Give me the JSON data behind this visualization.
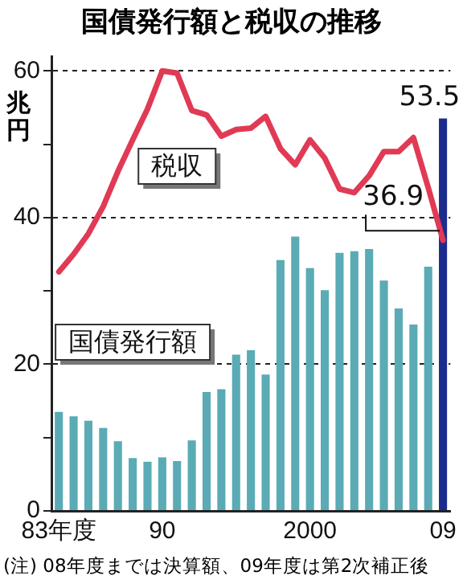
{
  "chart_data": {
    "type": "bar",
    "title": "国債発行額と税収の推移",
    "ylabel": "兆円",
    "categories": [
      "83年度",
      null,
      null,
      null,
      null,
      null,
      null,
      "90",
      null,
      null,
      null,
      null,
      null,
      null,
      null,
      null,
      null,
      "2000",
      null,
      null,
      null,
      null,
      null,
      null,
      null,
      null,
      "09"
    ],
    "series": [
      {
        "name": "国債発行額",
        "color": "#5aabb5",
        "colors": [
          null,
          null,
          null,
          null,
          null,
          null,
          null,
          null,
          null,
          null,
          null,
          null,
          null,
          null,
          null,
          null,
          null,
          null,
          null,
          null,
          null,
          null,
          null,
          null,
          null,
          null,
          "#1c2c8c"
        ],
        "values": [
          13.5,
          12.9,
          12.3,
          11.3,
          9.5,
          7.2,
          6.7,
          7.3,
          6.8,
          9.6,
          16.2,
          16.6,
          21.3,
          21.9,
          18.6,
          34.2,
          37.4,
          33.1,
          30.1,
          35.2,
          35.4,
          35.7,
          31.4,
          27.6,
          25.4,
          33.3,
          53.5
        ],
        "value_labels": [
          null,
          null,
          null,
          null,
          null,
          null,
          null,
          null,
          null,
          null,
          null,
          null,
          null,
          null,
          null,
          null,
          null,
          null,
          null,
          null,
          null,
          null,
          null,
          null,
          null,
          null,
          "53.5"
        ]
      },
      {
        "name": "税収",
        "type": "line",
        "color": "#e03a55",
        "values": [
          32.6,
          35.0,
          37.8,
          41.5,
          46.3,
          50.6,
          54.8,
          60.0,
          59.7,
          54.6,
          54.0,
          51.1,
          52.0,
          52.2,
          53.8,
          49.4,
          47.2,
          50.6,
          48.1,
          43.9,
          43.4,
          45.7,
          49.0,
          49.0,
          50.9,
          44.1,
          36.9
        ],
        "value_labels": [
          null,
          null,
          null,
          null,
          null,
          null,
          null,
          null,
          null,
          null,
          null,
          null,
          null,
          null,
          null,
          null,
          null,
          null,
          null,
          null,
          null,
          null,
          null,
          null,
          null,
          null,
          "36.9"
        ]
      }
    ],
    "ylim": [
      0,
      62
    ],
    "yticks": [
      0,
      {
        "value": 10,
        "label": null
      },
      20,
      {
        "value": 30,
        "label": null
      },
      40,
      {
        "value": 50,
        "label": null
      },
      60
    ],
    "grid": "y",
    "legend": false,
    "marker": "none",
    "line_style": "solid",
    "annotations": [
      "(注) 08年度までは決算額、09年度は第2次補正後"
    ]
  }
}
